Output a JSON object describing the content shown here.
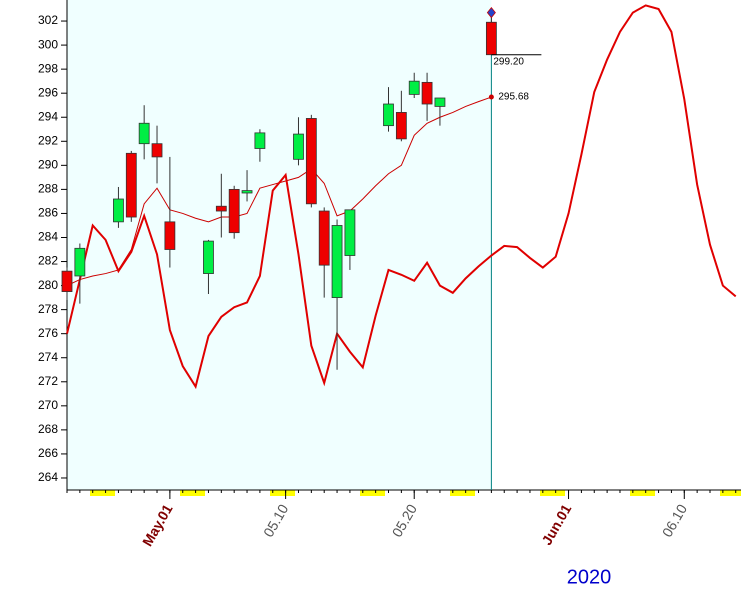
{
  "chart_data": {
    "type": "candlestick",
    "categories": [
      null,
      null,
      null,
      null,
      null,
      null,
      null,
      null,
      "May.01",
      null,
      null,
      null,
      null,
      null,
      null,
      null,
      null,
      "05.10",
      null,
      null,
      null,
      null,
      null,
      null,
      null,
      null,
      null,
      "05.20",
      null,
      null,
      null,
      null,
      null,
      null,
      null,
      null,
      null,
      null,
      null,
      "Jun.01",
      null,
      null,
      null,
      null,
      null,
      null,
      null,
      null,
      "06.10",
      null,
      null,
      null,
      null
    ],
    "open": [
      281.2,
      280.8,
      null,
      null,
      285.3,
      291,
      291.8,
      291.8,
      285.3,
      null,
      null,
      281,
      286.6,
      288,
      287.7,
      291.4,
      null,
      null,
      290.5,
      293.9,
      286.2,
      279,
      282.5,
      null,
      null,
      293.3,
      294.4,
      295.9,
      296.9,
      294.9,
      null,
      null,
      null,
      301.9,
      null,
      null,
      null,
      null,
      null,
      null,
      null,
      null,
      null,
      null,
      null,
      null,
      null,
      null,
      null,
      null,
      null,
      null,
      null
    ],
    "high": [
      281.5,
      283.5,
      null,
      null,
      288.2,
      291.2,
      295,
      293.3,
      290.7,
      null,
      null,
      283.8,
      289.3,
      288.3,
      289.6,
      293,
      null,
      null,
      294,
      294.2,
      286.5,
      285.5,
      286.3,
      null,
      null,
      296.5,
      296.2,
      297.7,
      297.7,
      295.6,
      null,
      null,
      null,
      302.7,
      null,
      null,
      null,
      null,
      null,
      null,
      null,
      null,
      null,
      null,
      null,
      null,
      null,
      null,
      null,
      null,
      null,
      null,
      null
    ],
    "low": [
      278.8,
      278.5,
      null,
      null,
      284.8,
      285.3,
      290.5,
      288.5,
      281.5,
      null,
      null,
      279.3,
      284,
      283.9,
      287,
      290.3,
      null,
      null,
      290,
      286.5,
      279,
      273,
      281.3,
      null,
      null,
      292.8,
      292,
      295.6,
      293.7,
      293.3,
      null,
      null,
      null,
      299.2,
      null,
      null,
      null,
      null,
      null,
      null,
      null,
      null,
      null,
      null,
      null,
      null,
      null,
      null,
      null,
      null,
      null,
      null,
      null
    ],
    "close": [
      279.5,
      283.1,
      null,
      null,
      287.2,
      285.7,
      293.5,
      290.7,
      283,
      null,
      null,
      283.7,
      286.2,
      284.4,
      287.9,
      292.7,
      null,
      null,
      292.6,
      286.8,
      281.7,
      285,
      286.3,
      null,
      null,
      295.1,
      292.2,
      297,
      295.1,
      295.6,
      null,
      null,
      null,
      299.2,
      null,
      null,
      null,
      null,
      null,
      null,
      null,
      null,
      null,
      null,
      null,
      null,
      null,
      null,
      null,
      null,
      null,
      null,
      null
    ],
    "close_value_labels": [
      null,
      null,
      null,
      null,
      null,
      null,
      null,
      null,
      null,
      null,
      null,
      null,
      null,
      null,
      null,
      null,
      null,
      null,
      null,
      null,
      null,
      null,
      null,
      null,
      null,
      null,
      null,
      null,
      null,
      null,
      null,
      null,
      null,
      "299.20",
      null,
      null,
      null,
      null,
      null,
      null,
      null,
      null,
      null,
      null,
      null,
      null,
      null,
      null,
      null,
      null,
      null,
      null,
      null
    ],
    "up_color": "#00ee44",
    "down_color": "#ee0000",
    "lines": [
      {
        "color": "#cc0000",
        "width": 1,
        "values": [
          280,
          280.5,
          280.8,
          281,
          281.3,
          283,
          286.8,
          288.1,
          286.3,
          286,
          285.6,
          285.3,
          285.7,
          285.7,
          286,
          288.1,
          288.4,
          288.7,
          289,
          289.7,
          288.5,
          285.8,
          286.2,
          287.2,
          288.3,
          289.3,
          290,
          292.5,
          293.5,
          294,
          294.4,
          294.9,
          295.3,
          295.68,
          null,
          null,
          null,
          null,
          null,
          null,
          null,
          null,
          null,
          null,
          null,
          null,
          null,
          null,
          null,
          null,
          null,
          null,
          null
        ],
        "value_labels": [
          null,
          null,
          null,
          null,
          null,
          null,
          null,
          null,
          null,
          null,
          null,
          null,
          null,
          null,
          null,
          null,
          null,
          null,
          null,
          null,
          null,
          null,
          null,
          null,
          null,
          null,
          null,
          null,
          null,
          null,
          null,
          null,
          null,
          "295.68",
          null,
          null,
          null,
          null,
          null,
          null,
          null,
          null,
          null,
          null,
          null,
          null,
          null,
          null,
          null,
          null,
          null,
          null,
          null
        ]
      },
      {
        "color": "#e00000",
        "width": 2,
        "values": [
          276,
          280.5,
          285,
          283.8,
          281.2,
          282.8,
          285.8,
          282.6,
          276.3,
          273.3,
          271.6,
          275.8,
          277.4,
          278.2,
          278.6,
          280.8,
          287.9,
          289.2,
          282.6,
          275,
          271.9,
          276,
          274.5,
          273.2,
          277.5,
          281.3,
          280.9,
          280.4,
          281.9,
          280,
          279.4,
          280.6,
          281.6,
          282.5,
          283.3,
          283.2,
          282.3,
          281.5,
          282.4,
          286,
          290.9,
          296.1,
          298.8,
          301.1,
          302.7,
          303.3,
          303,
          301.1,
          295.5,
          288.4,
          283.4,
          280,
          279.1
        ]
      }
    ],
    "ylim": [
      263,
      303.75
    ],
    "yticks": [
      264,
      266,
      268,
      270,
      272,
      274,
      276,
      278,
      280,
      282,
      284,
      286,
      288,
      290,
      292,
      294,
      296,
      298,
      300,
      302
    ],
    "year_label": "2020",
    "month_label_color": "#800000",
    "day_label_color": "#555555",
    "shade_color": "#f0ffff"
  }
}
